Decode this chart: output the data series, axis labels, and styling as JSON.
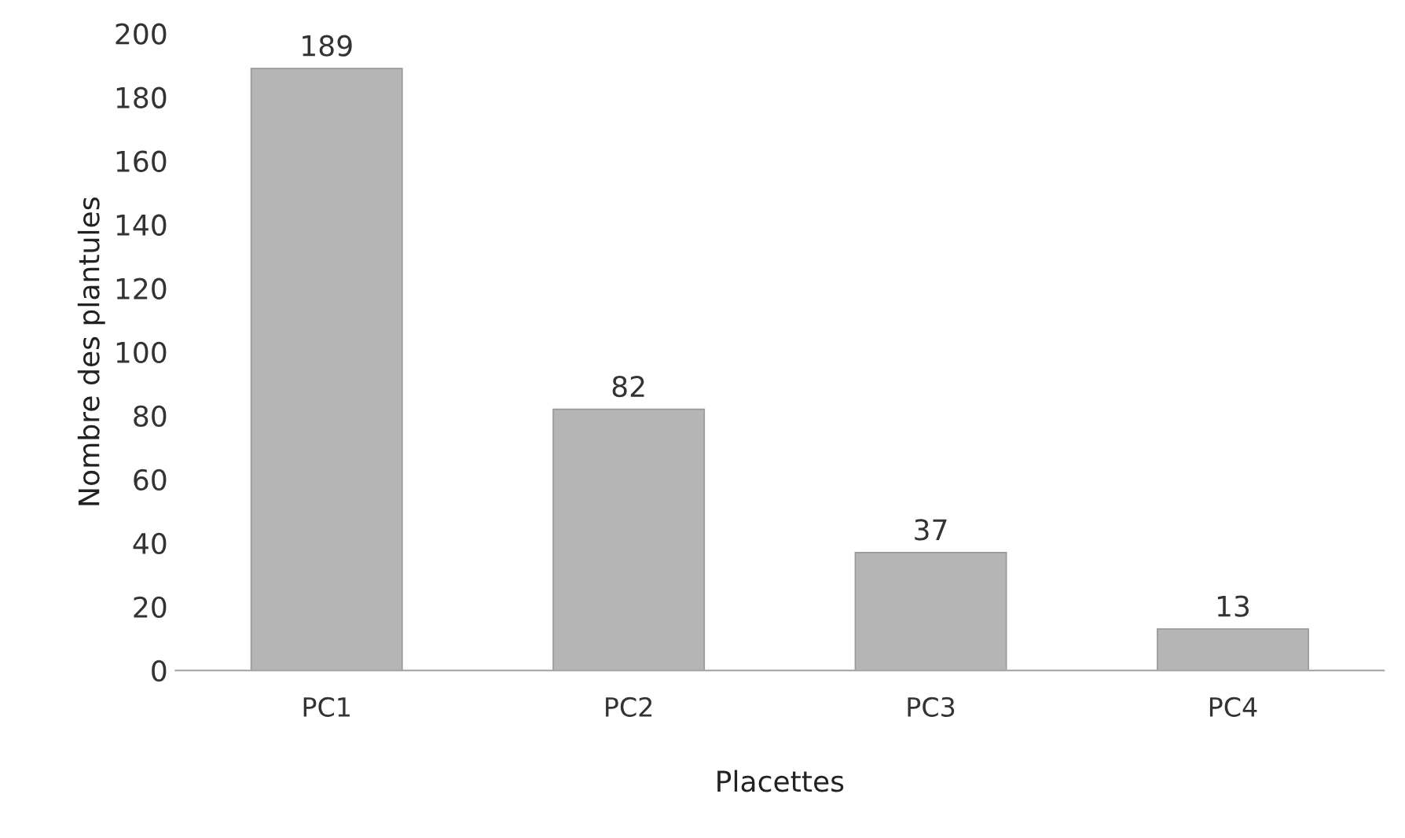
{
  "chart_data": {
    "type": "bar",
    "xlabel": "Placettes",
    "ylabel": "Nombre des plantules",
    "categories": [
      "PC1",
      "PC2",
      "PC3",
      "PC4"
    ],
    "values": [
      189,
      82,
      37,
      13
    ],
    "color": "#b5b5b5",
    "ylim": [
      0,
      200
    ],
    "yticks": [
      0,
      20,
      40,
      60,
      80,
      100,
      120,
      140,
      160,
      180,
      200
    ],
    "data_labels": true,
    "grid": false
  }
}
